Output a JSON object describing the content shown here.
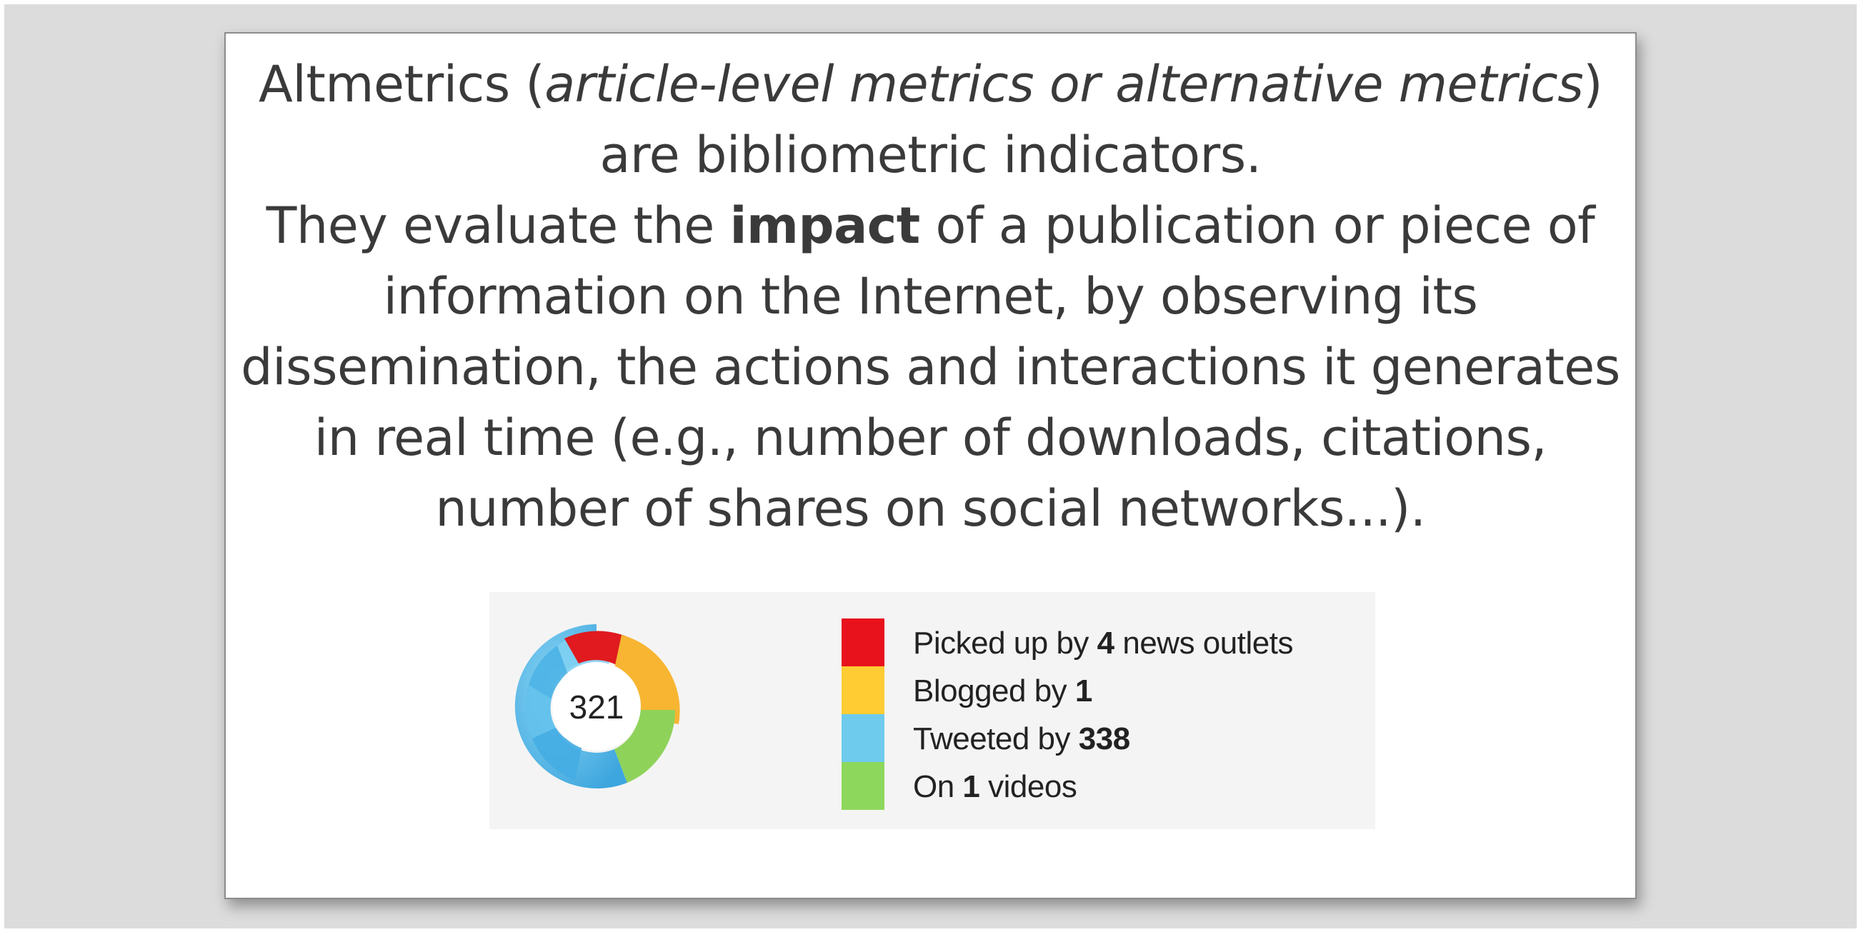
{
  "slide": {
    "lines": [
      {
        "pre": "Altmetrics (",
        "ital": "article-level metrics or alternative metrics",
        "post": ")"
      },
      {
        "text": "are bibliometric indicators."
      },
      {
        "pre": "They evaluate the ",
        "bold": "impact",
        "post": " of a publication or piece of"
      },
      {
        "text": "information on the Internet, by observing its"
      },
      {
        "text": "dissemination, the actions and interactions it generates"
      },
      {
        "text": "in real time (e.g., number of downloads, citations,"
      },
      {
        "text": "number of shares on social networks...)."
      }
    ]
  },
  "badge": {
    "score": "321",
    "legend": [
      {
        "pre": "Picked up by ",
        "num": "4",
        "post": " news outlets",
        "color": "#e8121c"
      },
      {
        "pre": "Blogged by ",
        "num": "1",
        "post": "",
        "color": "#ffcc33"
      },
      {
        "pre": "Tweeted by ",
        "num": "338",
        "post": "",
        "color": "#6ecbee"
      },
      {
        "pre": "On ",
        "num": "1",
        "post": " videos",
        "color": "#8dd85c"
      }
    ],
    "colors": {
      "news": "#e8121c",
      "blogs": "#ffcc33",
      "twitter": "#6ecbee",
      "video": "#8dd85c",
      "card_background": "#f4f4f4"
    }
  }
}
